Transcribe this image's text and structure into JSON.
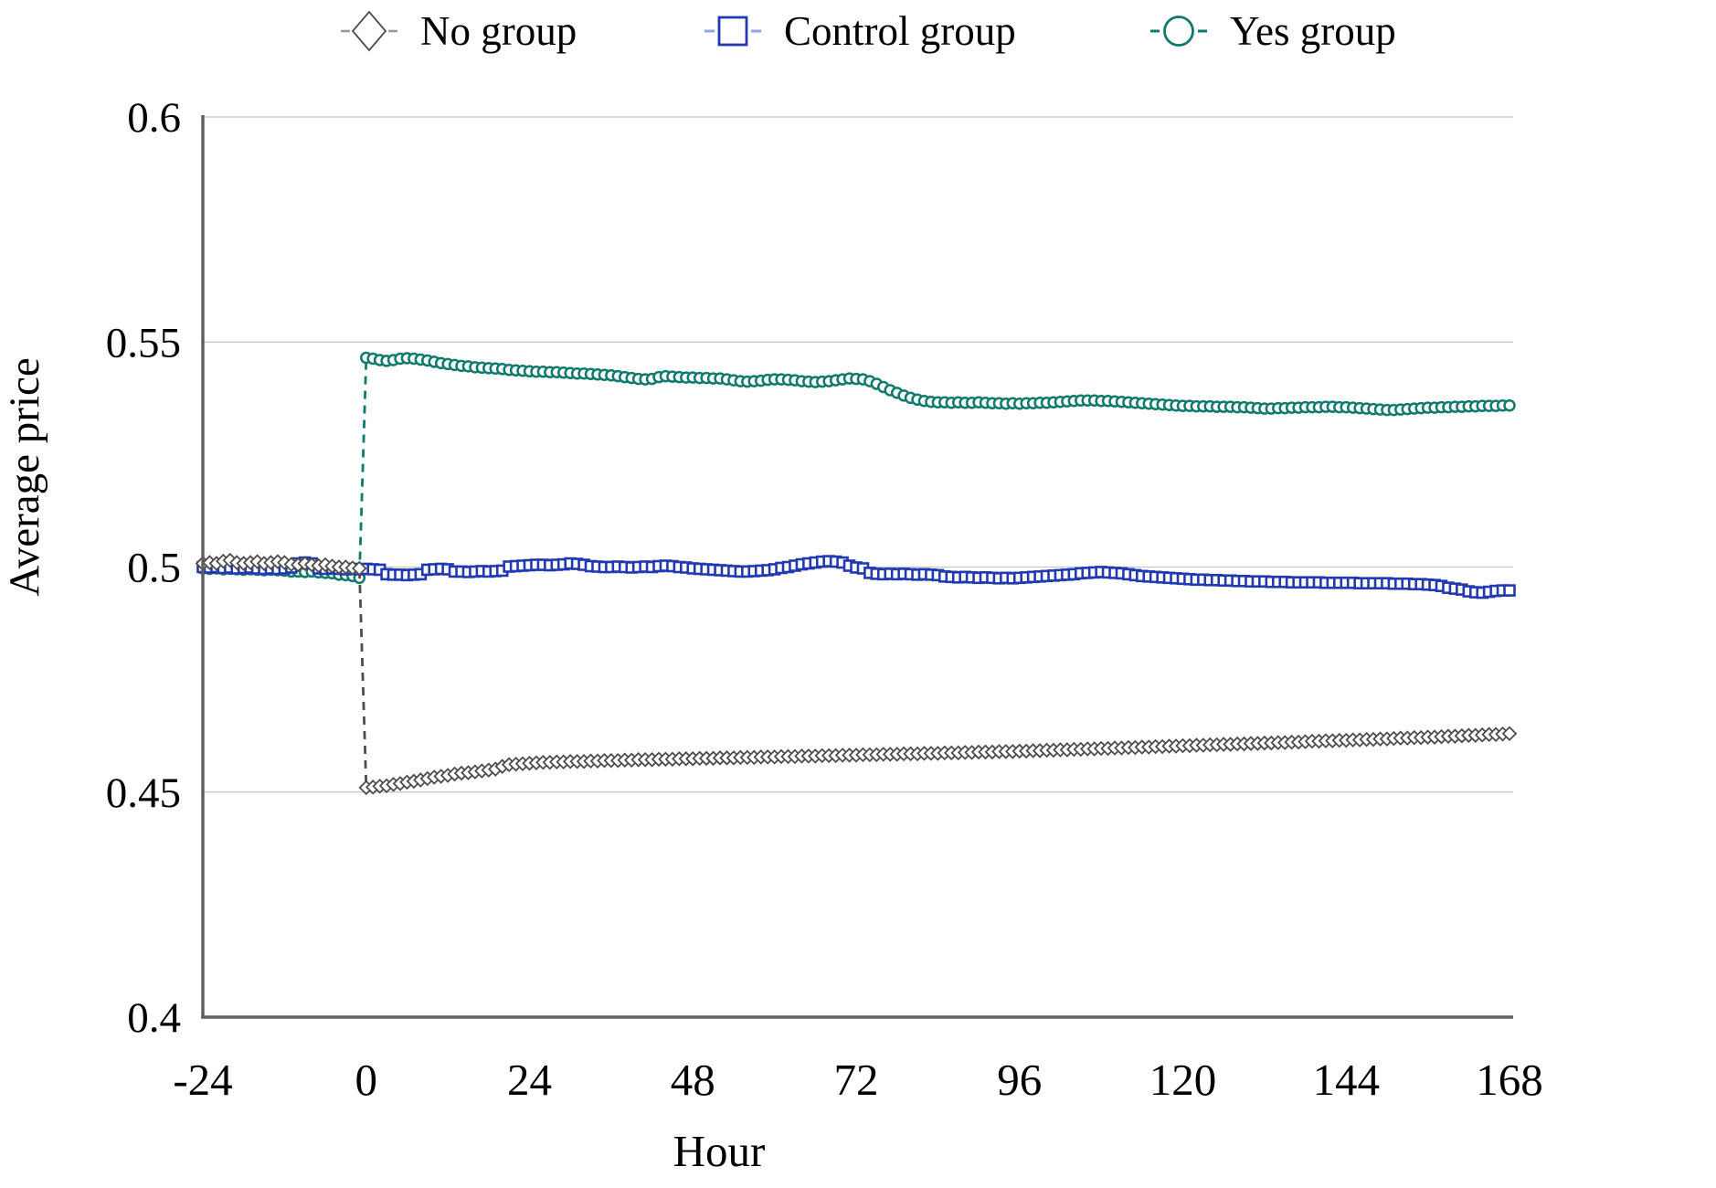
{
  "legend": {
    "items": [
      {
        "label": "No group",
        "marker": "diamond",
        "color": "#4d4d4d",
        "line_color": "#4d4d4d"
      },
      {
        "label": "Control group",
        "marker": "square",
        "color": "#2239b0",
        "line_color": "#93a3e0"
      },
      {
        "label": "Yes group",
        "marker": "circle",
        "color": "#107a6c",
        "line_color": "#107a6c"
      }
    ]
  },
  "axes": {
    "xlabel": "Hour",
    "ylabel": "Average price",
    "x_tick_values": [
      -24,
      0,
      24,
      48,
      72,
      96,
      120,
      144,
      168
    ],
    "x_tick_labels": [
      "-24",
      "0",
      "24",
      "48",
      "72",
      "96",
      "120",
      "144",
      "168"
    ],
    "y_tick_values": [
      0.4,
      0.45,
      0.5,
      0.55,
      0.6
    ],
    "y_tick_labels": [
      "0.4",
      "0.45",
      "0.5",
      "0.55",
      "0.6"
    ]
  },
  "style": {
    "grid_color": "#c6c6c6",
    "axis_color": "#5f5f5f",
    "text_color": "#000000",
    "background": "#ffffff"
  },
  "chart_data": {
    "type": "line",
    "title": "",
    "xlabel": "Hour",
    "ylabel": "Average price",
    "xlim": [
      -24,
      168
    ],
    "ylim": [
      0.4,
      0.6
    ],
    "grid": "horizontal",
    "legend_position": "top",
    "x_start": -24,
    "x_step": 1,
    "series": [
      {
        "name": "No group",
        "marker": "diamond",
        "color": "#4d4d4d",
        "line_color": "#4d4d4d",
        "values": [
          0.5008,
          0.501,
          0.5008,
          0.5013,
          0.5015,
          0.501,
          0.5008,
          0.501,
          0.5012,
          0.5008,
          0.501,
          0.5012,
          0.501,
          0.5006,
          0.5005,
          0.5008,
          0.5005,
          0.5003,
          0.5005,
          0.5002,
          0.5,
          0.5,
          0.4998,
          0.4997,
          0.451,
          0.4511,
          0.4513,
          0.4514,
          0.4517,
          0.4519,
          0.4522,
          0.4524,
          0.4527,
          0.453,
          0.4533,
          0.4535,
          0.4537,
          0.454,
          0.4542,
          0.4543,
          0.4545,
          0.4547,
          0.4549,
          0.4551,
          0.4557,
          0.4561,
          0.4562,
          0.4563,
          0.4564,
          0.4565,
          0.4566,
          0.4566,
          0.4567,
          0.4567,
          0.4568,
          0.4568,
          0.4568,
          0.4569,
          0.4569,
          0.457,
          0.457,
          0.457,
          0.4571,
          0.4571,
          0.4572,
          0.4572,
          0.4572,
          0.4573,
          0.4573,
          0.4573,
          0.4574,
          0.4574,
          0.4574,
          0.4575,
          0.4575,
          0.4575,
          0.4576,
          0.4576,
          0.4576,
          0.4577,
          0.4577,
          0.4577,
          0.4578,
          0.4578,
          0.4578,
          0.4579,
          0.4579,
          0.4579,
          0.458,
          0.458,
          0.458,
          0.4581,
          0.4581,
          0.4581,
          0.4582,
          0.4582,
          0.4582,
          0.4583,
          0.4583,
          0.4583,
          0.4584,
          0.4584,
          0.4584,
          0.4585,
          0.4585,
          0.4585,
          0.4586,
          0.4586,
          0.4586,
          0.4587,
          0.4587,
          0.4587,
          0.4588,
          0.4588,
          0.4589,
          0.4589,
          0.4589,
          0.459,
          0.459,
          0.459,
          0.4591,
          0.4591,
          0.4592,
          0.4592,
          0.4593,
          0.4593,
          0.4594,
          0.4594,
          0.4595,
          0.4595,
          0.4596,
          0.4596,
          0.4597,
          0.4597,
          0.4598,
          0.4598,
          0.4599,
          0.4599,
          0.46,
          0.46,
          0.4601,
          0.4601,
          0.4602,
          0.4602,
          0.4603,
          0.4603,
          0.4604,
          0.4604,
          0.4605,
          0.4605,
          0.4606,
          0.4606,
          0.4607,
          0.4607,
          0.4608,
          0.4608,
          0.4609,
          0.4609,
          0.461,
          0.461,
          0.4611,
          0.4611,
          0.4612,
          0.4613,
          0.4613,
          0.4614,
          0.4614,
          0.4615,
          0.4615,
          0.4616,
          0.4616,
          0.4617,
          0.4617,
          0.4618,
          0.4618,
          0.4619,
          0.462,
          0.462,
          0.4621,
          0.4621,
          0.4622,
          0.4622,
          0.4623,
          0.4624,
          0.4624,
          0.4625,
          0.4626,
          0.4626,
          0.4627,
          0.4628,
          0.4628,
          0.4629,
          0.463
        ]
      },
      {
        "name": "Control group",
        "marker": "square",
        "color": "#2239b0",
        "line_color": "#93a3e0",
        "values": [
          0.5,
          0.4999,
          0.5,
          0.4998,
          0.4999,
          0.4997,
          0.4998,
          0.4999,
          0.4997,
          0.4996,
          0.4997,
          0.4996,
          0.4997,
          0.4999,
          0.5008,
          0.501,
          0.5008,
          0.4997,
          0.4996,
          0.4997,
          0.4996,
          0.4995,
          0.4996,
          0.4995,
          0.4996,
          0.4995,
          0.4994,
          0.4984,
          0.4983,
          0.4983,
          0.4982,
          0.4983,
          0.4984,
          0.4994,
          0.4995,
          0.4996,
          0.4995,
          0.499,
          0.499,
          0.4989,
          0.499,
          0.4991,
          0.499,
          0.4991,
          0.4992,
          0.5001,
          0.5002,
          0.5003,
          0.5004,
          0.5005,
          0.5005,
          0.5004,
          0.5005,
          0.5006,
          0.5008,
          0.5007,
          0.5005,
          0.5002,
          0.5001,
          0.5,
          0.5,
          0.5001,
          0.5,
          0.4999,
          0.5,
          0.5001,
          0.5,
          0.5002,
          0.5003,
          0.5002,
          0.5,
          0.4999,
          0.4997,
          0.4996,
          0.4995,
          0.4994,
          0.4993,
          0.4992,
          0.4991,
          0.499,
          0.499,
          0.4991,
          0.4992,
          0.4993,
          0.4995,
          0.4998,
          0.5,
          0.5003,
          0.5006,
          0.5008,
          0.501,
          0.5012,
          0.5013,
          0.5012,
          0.501,
          0.5003,
          0.4999,
          0.4997,
          0.4987,
          0.4985,
          0.4984,
          0.4985,
          0.4984,
          0.4985,
          0.4984,
          0.4983,
          0.4984,
          0.4983,
          0.4982,
          0.4979,
          0.4978,
          0.4977,
          0.4978,
          0.4977,
          0.4976,
          0.4977,
          0.4976,
          0.4975,
          0.4976,
          0.4975,
          0.4976,
          0.4977,
          0.4978,
          0.4979,
          0.498,
          0.4981,
          0.4982,
          0.4983,
          0.4984,
          0.4986,
          0.4987,
          0.4988,
          0.4989,
          0.4988,
          0.4987,
          0.4986,
          0.4984,
          0.4982,
          0.498,
          0.4979,
          0.4978,
          0.4977,
          0.4976,
          0.4975,
          0.4974,
          0.4973,
          0.4972,
          0.4972,
          0.4971,
          0.4971,
          0.497,
          0.497,
          0.4969,
          0.4969,
          0.4968,
          0.4968,
          0.4968,
          0.4967,
          0.4967,
          0.4967,
          0.4966,
          0.4966,
          0.4966,
          0.4966,
          0.4966,
          0.4965,
          0.4965,
          0.4965,
          0.4965,
          0.4965,
          0.4964,
          0.4964,
          0.4964,
          0.4964,
          0.4964,
          0.4963,
          0.4963,
          0.4963,
          0.4962,
          0.4962,
          0.4961,
          0.496,
          0.4958,
          0.4954,
          0.4952,
          0.495,
          0.4946,
          0.4944,
          0.4943,
          0.4945,
          0.4947,
          0.4948,
          0.4948
        ]
      },
      {
        "name": "Yes group",
        "marker": "circle",
        "color": "#107a6c",
        "line_color": "#107a6c",
        "values": [
          0.4997,
          0.4996,
          0.4997,
          0.4995,
          0.4996,
          0.4995,
          0.4994,
          0.4995,
          0.4994,
          0.4993,
          0.4994,
          0.4993,
          0.4992,
          0.499,
          0.499,
          0.4989,
          0.499,
          0.4988,
          0.4987,
          0.4986,
          0.4983,
          0.4982,
          0.498,
          0.4976,
          0.5465,
          0.5463,
          0.546,
          0.5458,
          0.546,
          0.5463,
          0.5464,
          0.5463,
          0.5461,
          0.5459,
          0.5456,
          0.5453,
          0.5451,
          0.5449,
          0.5447,
          0.5446,
          0.5444,
          0.5443,
          0.5442,
          0.5441,
          0.544,
          0.5438,
          0.5437,
          0.5436,
          0.5435,
          0.5434,
          0.5434,
          0.5433,
          0.5433,
          0.5432,
          0.5431,
          0.543,
          0.543,
          0.5429,
          0.5428,
          0.5427,
          0.5426,
          0.5424,
          0.5422,
          0.542,
          0.5418,
          0.5417,
          0.5418,
          0.5422,
          0.5424,
          0.5423,
          0.5422,
          0.5421,
          0.5421,
          0.542,
          0.542,
          0.5419,
          0.5419,
          0.5417,
          0.5415,
          0.5413,
          0.5412,
          0.5413,
          0.5414,
          0.5416,
          0.5417,
          0.5417,
          0.5416,
          0.5415,
          0.5413,
          0.5412,
          0.5411,
          0.5412,
          0.5413,
          0.5415,
          0.5417,
          0.5419,
          0.5418,
          0.5417,
          0.5413,
          0.5407,
          0.54,
          0.5393,
          0.5387,
          0.5381,
          0.5376,
          0.5372,
          0.5369,
          0.5367,
          0.5366,
          0.5366,
          0.5365,
          0.5366,
          0.5365,
          0.5365,
          0.5366,
          0.5365,
          0.5364,
          0.5364,
          0.5363,
          0.5364,
          0.5363,
          0.5364,
          0.5364,
          0.5365,
          0.5365,
          0.5366,
          0.5367,
          0.5368,
          0.5369,
          0.537,
          0.537,
          0.537,
          0.5369,
          0.5369,
          0.5368,
          0.5367,
          0.5366,
          0.5365,
          0.5364,
          0.5363,
          0.5362,
          0.5361,
          0.536,
          0.5359,
          0.5358,
          0.5358,
          0.5357,
          0.5357,
          0.5357,
          0.5356,
          0.5356,
          0.5356,
          0.5355,
          0.5355,
          0.5354,
          0.5353,
          0.5352,
          0.5352,
          0.5353,
          0.5353,
          0.5354,
          0.5354,
          0.5355,
          0.5355,
          0.5355,
          0.5356,
          0.5356,
          0.5355,
          0.5355,
          0.5354,
          0.5353,
          0.5352,
          0.5351,
          0.535,
          0.5349,
          0.5349,
          0.535,
          0.5351,
          0.5352,
          0.5353,
          0.5354,
          0.5354,
          0.5355,
          0.5355,
          0.5356,
          0.5356,
          0.5357,
          0.5357,
          0.5358,
          0.5358,
          0.5358,
          0.5359,
          0.5359
        ]
      }
    ]
  }
}
